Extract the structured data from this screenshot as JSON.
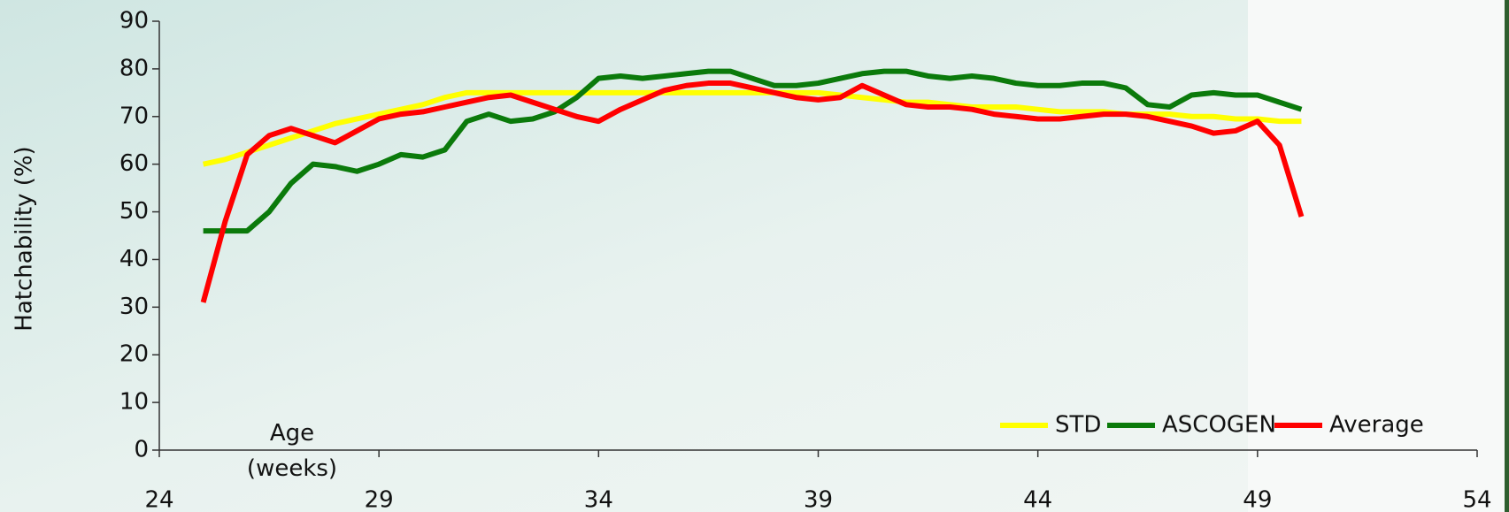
{
  "chart_data": {
    "type": "line",
    "xlabel": "Age (weeks)",
    "ylabel": "Hatchability (%)",
    "x": [
      25,
      25.5,
      26,
      26.5,
      27,
      27.5,
      28,
      28.5,
      29,
      29.5,
      30,
      30.5,
      31,
      31.5,
      32,
      32.5,
      33,
      33.5,
      34,
      34.5,
      35,
      35.5,
      36,
      36.5,
      37,
      37.5,
      38,
      38.5,
      39,
      39.5,
      40,
      40.5,
      41,
      41.5,
      42,
      42.5,
      43,
      43.5,
      44,
      44.5,
      45,
      45.5,
      46,
      46.5,
      47,
      47.5,
      48,
      48.5,
      49,
      49.5,
      50
    ],
    "series": [
      {
        "name": "STD",
        "color": "#ffff00",
        "values": [
          60,
          61,
          62.5,
          64,
          65.5,
          67,
          68.5,
          69.5,
          70.5,
          71.5,
          72.5,
          74,
          75,
          75,
          75,
          75,
          75,
          75,
          75,
          75,
          75,
          75,
          75,
          75,
          75,
          75,
          75,
          75,
          75,
          74.5,
          74,
          73.5,
          73,
          73,
          72.5,
          72,
          72,
          72,
          71.5,
          71,
          71,
          71,
          70.5,
          70.5,
          70.5,
          70,
          70,
          69.5,
          69.5,
          69,
          69
        ]
      },
      {
        "name": "ASCOGEN",
        "color": "#0b7a0b",
        "values": [
          46,
          46,
          46,
          50,
          56,
          60,
          59.5,
          58.5,
          60,
          62,
          61.5,
          63,
          69,
          70.5,
          69,
          69.5,
          71,
          74,
          78,
          78.5,
          78,
          78.5,
          79,
          79.5,
          79.5,
          78,
          76.5,
          76.5,
          77,
          78,
          79,
          79.5,
          79.5,
          78.5,
          78,
          78.5,
          78,
          77,
          76.5,
          76.5,
          77,
          77,
          76,
          72.5,
          72,
          74.5,
          75,
          74.5,
          74.5,
          73,
          71.5
        ]
      },
      {
        "name": "Average",
        "color": "#ff0000",
        "values": [
          31,
          48,
          62,
          66,
          67.5,
          66,
          64.5,
          67,
          69.5,
          70.5,
          71,
          72,
          73,
          74,
          74.5,
          73,
          71.5,
          70,
          69,
          71.5,
          73.5,
          75.5,
          76.5,
          77,
          77,
          76,
          75,
          74,
          73.5,
          74,
          76.5,
          74.5,
          72.5,
          72,
          72,
          71.5,
          70.5,
          70,
          69.5,
          69.5,
          70,
          70.5,
          70.5,
          70,
          69,
          68,
          66.5,
          67,
          69,
          64,
          49
        ]
      }
    ],
    "xlim": [
      24,
      54
    ],
    "xticks": [
      24,
      29,
      34,
      39,
      44,
      49,
      54
    ],
    "ylim": [
      0,
      90
    ],
    "yticks": [
      0,
      10,
      20,
      30,
      40,
      50,
      60,
      70,
      80,
      90
    ],
    "legend": "lower right"
  }
}
